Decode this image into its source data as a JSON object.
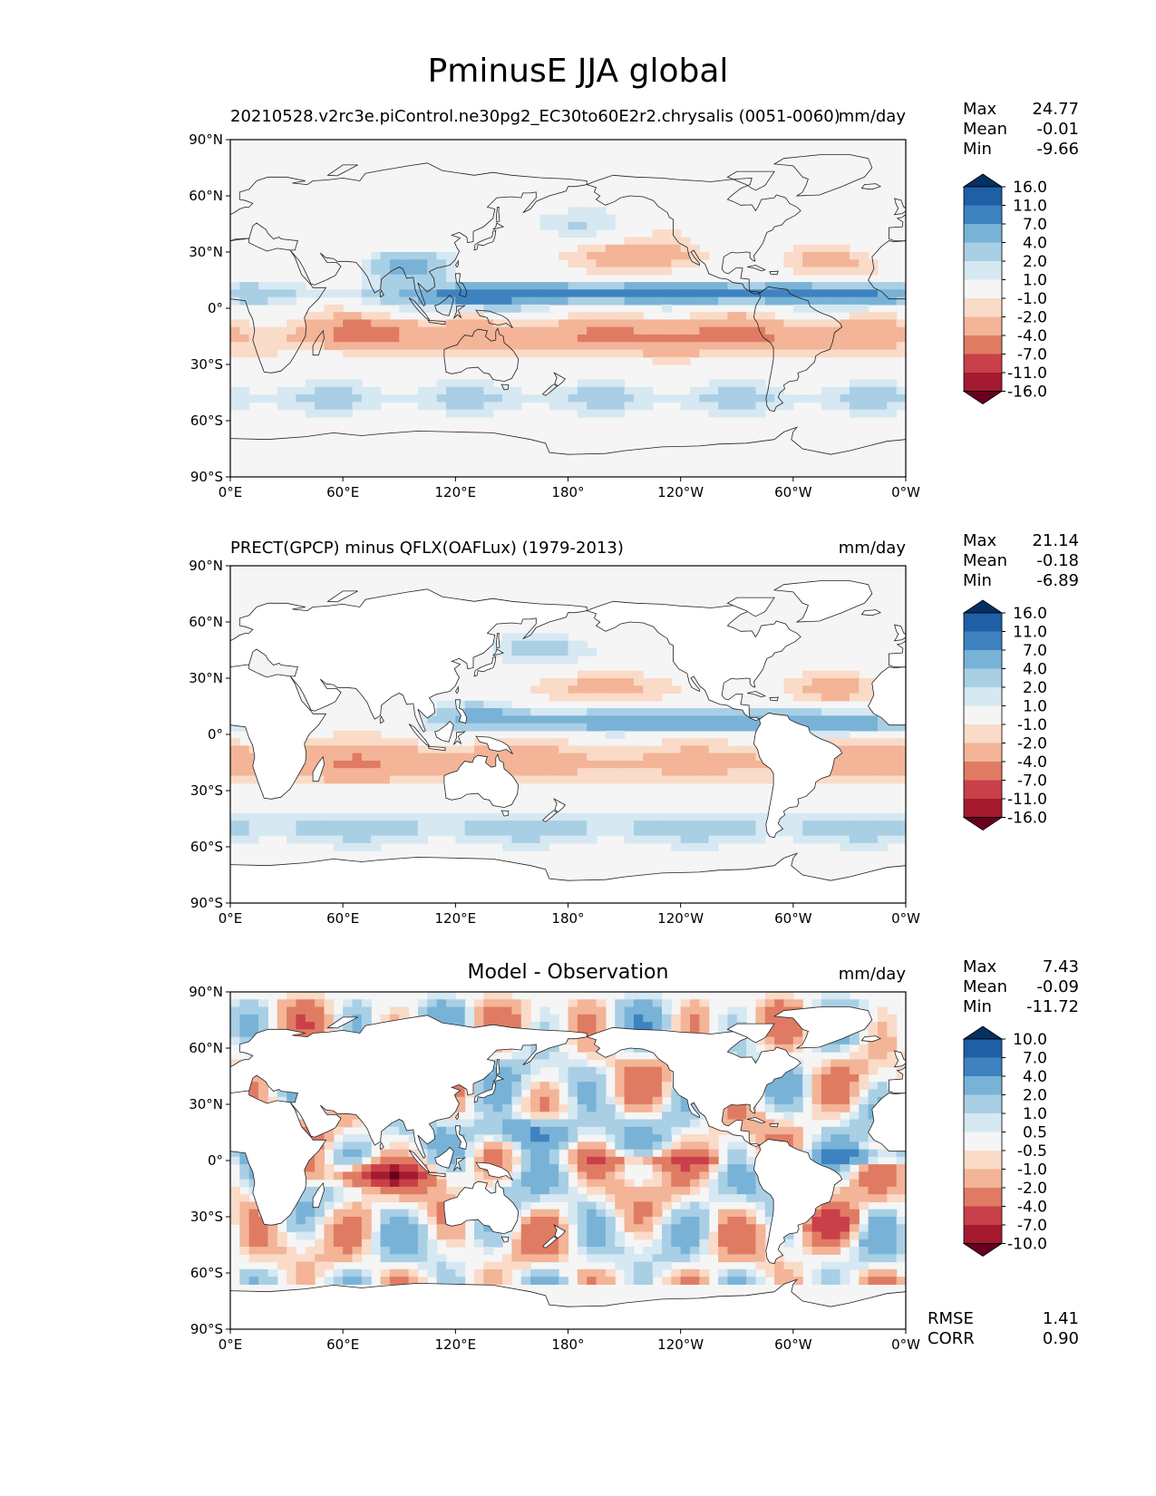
{
  "title": "PminusE JJA global",
  "x_ticks": [
    "0°E",
    "60°E",
    "120°E",
    "180°",
    "120°W",
    "60°W",
    "0°W"
  ],
  "y_ticks": [
    "90°N",
    "60°N",
    "30°N",
    "0°",
    "30°S",
    "60°S",
    "90°S"
  ],
  "panels": [
    {
      "title": "20210528.v2rc3e.piControl.ne30pg2_EC30to60E2r2.chrysalis (0051-0060)",
      "title_style": "left",
      "units": "mm/day",
      "stats": {
        "max_label": "Max",
        "max": "24.77",
        "mean_label": "Mean",
        "mean": "-0.01",
        "min_label": "Min",
        "min": "-9.66"
      },
      "colorbar_levels": [
        "16.0",
        "11.0",
        "7.0",
        "4.0",
        "2.0",
        "1.0",
        "-1.0",
        "-2.0",
        "-4.0",
        "-7.0",
        "-11.0",
        "-16.0"
      ]
    },
    {
      "title": "PRECT(GPCP) minus QFLX(OAFLux) (1979-2013)",
      "title_style": "left",
      "units": "mm/day",
      "stats": {
        "max_label": "Max",
        "max": "21.14",
        "mean_label": "Mean",
        "mean": "-0.18",
        "min_label": "Min",
        "min": "-6.89"
      },
      "colorbar_levels": [
        "16.0",
        "11.0",
        "7.0",
        "4.0",
        "2.0",
        "1.0",
        "-1.0",
        "-2.0",
        "-4.0",
        "-7.0",
        "-11.0",
        "-16.0"
      ]
    },
    {
      "title": "Model - Observation",
      "title_style": "center",
      "units": "mm/day",
      "stats": {
        "max_label": "Max",
        "max": "7.43",
        "mean_label": "Mean",
        "mean": "-0.09",
        "min_label": "Min",
        "min": "-11.72"
      },
      "colorbar_levels": [
        "10.0",
        "7.0",
        "4.0",
        "2.0",
        "1.0",
        "0.5",
        "-0.5",
        "-1.0",
        "-2.0",
        "-4.0",
        "-7.0",
        "-10.0"
      ]
    }
  ],
  "footer": {
    "rmse_label": "RMSE",
    "rmse": "1.41",
    "corr_label": "CORR",
    "corr": "0.90"
  },
  "colors": {
    "palette": [
      "#053061",
      "#2166ac",
      "#4393c3",
      "#92c5de",
      "#d1e5f0",
      "#f7f7f7",
      "#fddbc7",
      "#f4a582",
      "#d6604d",
      "#b2182b",
      "#67001f"
    ],
    "palette_extended": [
      "#053061",
      "#1f5fa6",
      "#3e83c0",
      "#78b3d7",
      "#a9cfe5",
      "#d6e8f2",
      "#f5f5f5",
      "#fadbc8",
      "#f3b497",
      "#e07b63",
      "#c9404a",
      "#a51a2f",
      "#67001f"
    ],
    "land": "#ffffff",
    "coast": "#222222"
  }
}
